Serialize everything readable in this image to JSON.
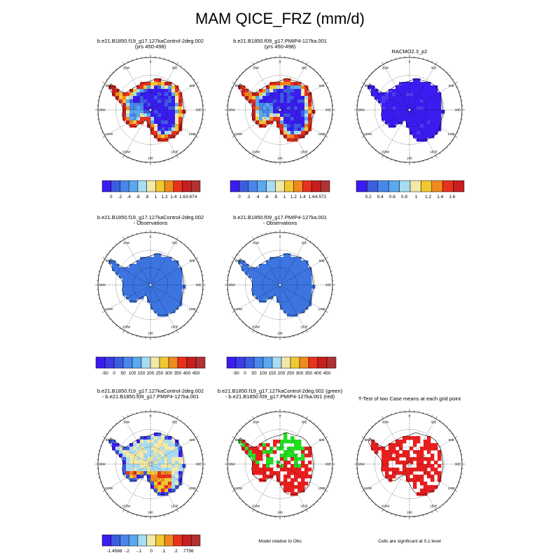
{
  "figure": {
    "title": "MAM QICE_FRZ (mm/d)"
  },
  "chart_data": [
    {
      "type": "heatmap",
      "projection": "south polar stereographic",
      "title_lines": [
        "b.e21.B1850.f19_g17.127kaControl-2deg.002",
        "(yrs 450-498)"
      ],
      "colorbar": {
        "colors": [
          "#3b1cf0",
          "#3b5ee0",
          "#4a86ea",
          "#5aa8ee",
          "#a8dcf2",
          "#f2e8a8",
          "#f2c832",
          "#f08a1e",
          "#e8321e",
          "#c81e1e",
          "#b03232"
        ],
        "ticks": [
          "0",
          ".2",
          ".4",
          ".6",
          ".8",
          "1",
          "1.2",
          "1.4",
          "1.6",
          "3.674"
        ]
      },
      "longitude_labels": [
        "0",
        "30E",
        "60E",
        "90E",
        "120E",
        "150E",
        "180",
        "150W",
        "120W",
        "90W",
        "60W",
        "30W"
      ]
    },
    {
      "type": "heatmap",
      "projection": "south polar stereographic",
      "title_lines": [
        "b.e21.B1850.f09_g17.PMIP4-127ka.001",
        "(yrs 450-498)"
      ],
      "colorbar": {
        "colors": [
          "#3b1cf0",
          "#3b5ee0",
          "#4a86ea",
          "#5aa8ee",
          "#a8dcf2",
          "#f2e8a8",
          "#f2c832",
          "#f08a1e",
          "#e8321e",
          "#c81e1e",
          "#b03232"
        ],
        "ticks": [
          "0",
          ".2",
          ".4",
          ".6",
          ".8",
          "1",
          "1.2",
          "1.4",
          "1.6",
          "4.572"
        ]
      },
      "longitude_labels": [
        "0",
        "30E",
        "60E",
        "90E",
        "120E",
        "150E",
        "180",
        "150W",
        "120W",
        "90W",
        "60W",
        "30W"
      ]
    },
    {
      "type": "heatmap",
      "projection": "south polar stereographic",
      "title_lines": [
        "RACMO2.3_p2"
      ],
      "colorbar": {
        "colors": [
          "#3b1cf0",
          "#3b5ee0",
          "#4a86ea",
          "#5aa8ee",
          "#a8dcf2",
          "#f2e8a8",
          "#f2c832",
          "#f08a1e",
          "#e8321e",
          "#c81e1e"
        ],
        "ticks": [
          "0.2",
          "0.4",
          "0.6",
          "0.8",
          "1",
          "1.2",
          "1.4",
          "1.6"
        ]
      },
      "longitude_labels": [
        "0",
        "30E",
        "60E",
        "90E",
        "120E",
        "150E",
        "180",
        "150W",
        "120W",
        "90W",
        "60W",
        "30W"
      ]
    },
    {
      "type": "heatmap",
      "projection": "south polar stereographic",
      "title_lines": [
        "b.e21.B1850.f19_g17.127kaControl-2deg.002",
        "- Observations"
      ],
      "colorbar": {
        "colors": [
          "#3b1cf0",
          "#3b3ce8",
          "#3b5ee0",
          "#4a86ea",
          "#5aa8ee",
          "#a8dcf2",
          "#f2e8a8",
          "#f2c832",
          "#f08a1e",
          "#e8321e",
          "#c81e1e",
          "#b03232"
        ],
        "ticks": [
          "-50",
          "0",
          "50",
          "100",
          "150",
          "200",
          "250",
          "300",
          "350",
          "400",
          "450"
        ]
      },
      "longitude_labels": [
        "0",
        "30E",
        "60E",
        "90E",
        "120E",
        "150E",
        "180",
        "150W",
        "120W",
        "90W",
        "60W",
        "30W"
      ]
    },
    {
      "type": "heatmap",
      "projection": "south polar stereographic",
      "title_lines": [
        "b.e21.B1850.f09_g17.PMIP4-127ka.001",
        "- Observations"
      ],
      "colorbar": {
        "colors": [
          "#3b1cf0",
          "#3b3ce8",
          "#3b5ee0",
          "#4a86ea",
          "#5aa8ee",
          "#a8dcf2",
          "#f2e8a8",
          "#f2c832",
          "#f08a1e",
          "#e8321e",
          "#c81e1e",
          "#b03232"
        ],
        "ticks": [
          "-50",
          "0",
          "50",
          "100",
          "150",
          "200",
          "250",
          "300",
          "350",
          "400",
          "450"
        ]
      },
      "longitude_labels": [
        "0",
        "30E",
        "60E",
        "90E",
        "120E",
        "150E",
        "180",
        "150W",
        "120W",
        "90W",
        "60W",
        "30W"
      ]
    },
    {
      "type": "heatmap",
      "projection": "south polar stereographic",
      "title_lines": [
        "b.e21.B1850.f19_g17.127kaControl-2deg.002",
        "- b.e21.B1850.f09_g17.PMIP4-127ka.001"
      ],
      "colorbar": {
        "colors": [
          "#3b1cf0",
          "#3b5ee0",
          "#4a86ea",
          "#5aa8ee",
          "#a8dcf2",
          "#f2e8a8",
          "#f2c832",
          "#f08a1e",
          "#e8321e",
          "#c81e1e",
          "#b03232"
        ],
        "ticks": [
          "-1.4568",
          "-.2",
          "-.1",
          "0",
          ".1",
          ".2",
          ".7756"
        ]
      },
      "longitude_labels": [
        "0",
        "30E",
        "60E",
        "90E",
        "120E",
        "150E",
        "180",
        "150W",
        "120W",
        "90W",
        "60W",
        "30W"
      ]
    },
    {
      "type": "heatmap",
      "projection": "south polar stereographic",
      "title_lines": [
        "b.e21.B1850.f19_g17.127kaControl-2deg.002 (green)",
        "- b.e21.B1850.f09_g17.PMIP4-127ka.001 (red)"
      ],
      "caption": "Model relative to Obs",
      "longitude_labels": [
        "0",
        "30E",
        "60E",
        "90E",
        "120E",
        "150E",
        "180",
        "150W",
        "120W",
        "90W",
        "60W",
        "30W"
      ]
    },
    {
      "type": "heatmap",
      "projection": "south polar stereographic",
      "title_lines": [
        "T-Test of two Case means at each grid point"
      ],
      "caption": "Cells are significant at 0.1 level",
      "longitude_labels": [
        "0",
        "30E",
        "60E",
        "90E",
        "120E",
        "150E",
        "180",
        "150W",
        "120W",
        "90W",
        "60W",
        "30W"
      ]
    }
  ]
}
